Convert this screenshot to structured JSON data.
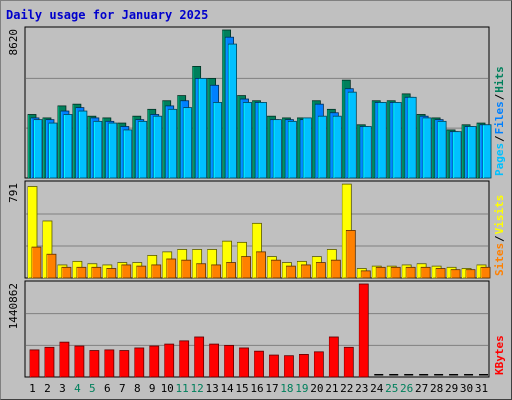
{
  "title": "Daily usage for January 2025",
  "colors": {
    "hits": "#00805c",
    "files": "#0080ff",
    "pages": "#00c0ff",
    "visits": "#ffff00",
    "sites": "#ff8000",
    "kbytes": "#ff0000",
    "weekend_label": "#00805c",
    "weekday_label": "#000000",
    "background": "#c0c0c0",
    "gridline": "#808080"
  },
  "chart_data": [
    {
      "type": "bar",
      "panel": "hits-files-pages",
      "ylabel_max": "8620",
      "ylim": [
        0,
        8620
      ],
      "categories": [
        "1",
        "2",
        "3",
        "4",
        "5",
        "6",
        "7",
        "8",
        "9",
        "10",
        "11",
        "12",
        "13",
        "14",
        "15",
        "16",
        "17",
        "18",
        "19",
        "20",
        "21",
        "22",
        "23",
        "24",
        "25",
        "26",
        "27",
        "28",
        "29",
        "30",
        "31"
      ],
      "legend": [
        {
          "label": "Hits",
          "color_key": "hits"
        },
        {
          "label": "Files",
          "color_key": "files"
        },
        {
          "label": "Pages",
          "color_key": "pages"
        }
      ],
      "series": [
        {
          "name": "Hits",
          "values": [
            3700,
            3500,
            4200,
            4300,
            3600,
            3500,
            3200,
            3600,
            4000,
            4500,
            4800,
            6500,
            5800,
            8620,
            4800,
            4500,
            3600,
            3500,
            3500,
            4500,
            4000,
            5700,
            3100,
            4500,
            4500,
            4900,
            3700,
            3500,
            2800,
            3100,
            3200
          ]
        },
        {
          "name": "Files",
          "values": [
            3500,
            3400,
            3900,
            4100,
            3500,
            3300,
            3000,
            3400,
            3700,
            4200,
            4500,
            5800,
            5400,
            8200,
            4600,
            4400,
            3400,
            3400,
            3400,
            4300,
            3800,
            5200,
            3000,
            4400,
            4400,
            4700,
            3600,
            3400,
            2700,
            3000,
            3100
          ]
        },
        {
          "name": "Pages",
          "values": [
            3400,
            3200,
            3700,
            3900,
            3300,
            3200,
            2800,
            3300,
            3600,
            4000,
            4100,
            5800,
            4400,
            7800,
            4400,
            4400,
            3400,
            3300,
            3500,
            3600,
            3600,
            5000,
            3000,
            4400,
            4400,
            4700,
            3500,
            3300,
            2700,
            3000,
            3100
          ]
        }
      ]
    },
    {
      "type": "bar",
      "panel": "visits-sites",
      "ylabel_max": "791",
      "ylim": [
        0,
        791
      ],
      "categories": [
        "1",
        "2",
        "3",
        "4",
        "5",
        "6",
        "7",
        "8",
        "9",
        "10",
        "11",
        "12",
        "13",
        "14",
        "15",
        "16",
        "17",
        "18",
        "19",
        "20",
        "21",
        "22",
        "23",
        "24",
        "25",
        "26",
        "27",
        "28",
        "29",
        "30",
        "31"
      ],
      "legend": [
        {
          "label": "Visits",
          "color_key": "visits"
        },
        {
          "label": "Sites",
          "color_key": "sites"
        }
      ],
      "series": [
        {
          "name": "Visits",
          "values": [
            770,
            480,
            110,
            140,
            120,
            110,
            130,
            130,
            190,
            220,
            240,
            240,
            240,
            310,
            300,
            460,
            180,
            130,
            140,
            180,
            240,
            790,
            80,
            100,
            100,
            110,
            120,
            100,
            90,
            80,
            110
          ]
        },
        {
          "name": "Sites",
          "values": [
            260,
            200,
            90,
            90,
            90,
            80,
            110,
            100,
            110,
            160,
            150,
            120,
            110,
            130,
            180,
            220,
            150,
            100,
            110,
            130,
            150,
            400,
            60,
            90,
            90,
            90,
            90,
            80,
            70,
            70,
            90
          ]
        }
      ]
    },
    {
      "type": "bar",
      "panel": "kbytes",
      "ylabel_max": "1440862",
      "ylim": [
        0,
        1440862
      ],
      "categories": [
        "1",
        "2",
        "3",
        "4",
        "5",
        "6",
        "7",
        "8",
        "9",
        "10",
        "11",
        "12",
        "13",
        "14",
        "15",
        "16",
        "17",
        "18",
        "19",
        "20",
        "21",
        "22",
        "23",
        "24",
        "25",
        "26",
        "27",
        "28",
        "29",
        "30",
        "31"
      ],
      "legend": [
        {
          "label": "KBytes",
          "color_key": "kbytes"
        }
      ],
      "series": [
        {
          "name": "KBytes",
          "values": [
            420000,
            460000,
            540000,
            480000,
            410000,
            420000,
            410000,
            450000,
            480000,
            510000,
            560000,
            620000,
            510000,
            490000,
            450000,
            400000,
            340000,
            330000,
            350000,
            390000,
            620000,
            460000,
            1440862,
            0,
            0,
            0,
            0,
            0,
            0,
            0,
            0
          ]
        }
      ]
    }
  ],
  "weekend_days": [
    4,
    5,
    11,
    12,
    18,
    19,
    25,
    26
  ]
}
